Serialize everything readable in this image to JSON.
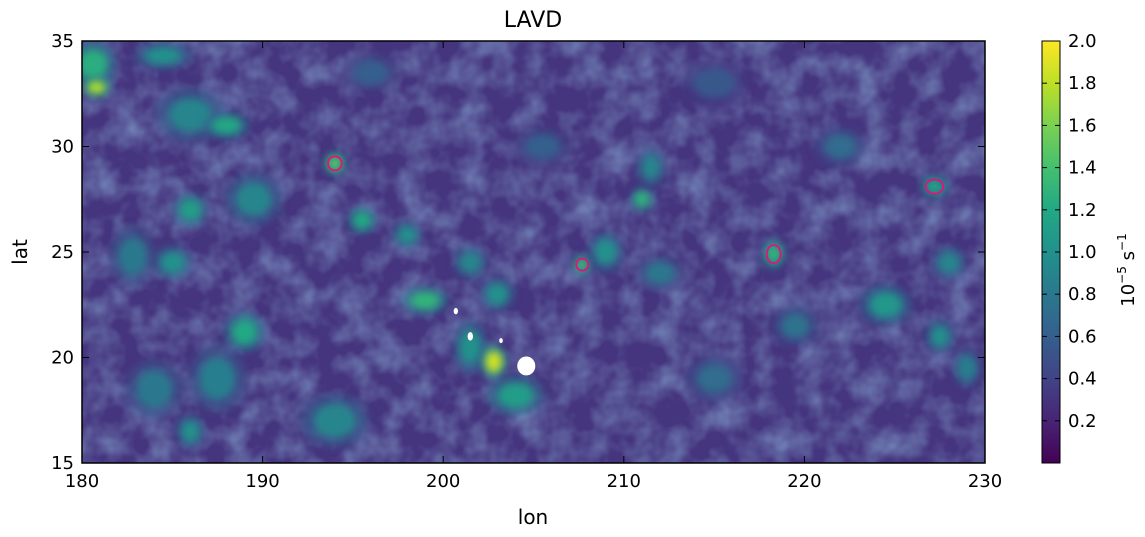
{
  "chart_data": {
    "type": "heatmap",
    "title": "LAVD",
    "xlabel": "lon",
    "ylabel": "lat",
    "xlim": [
      180,
      230
    ],
    "ylim": [
      15,
      35
    ],
    "xticks": [
      180,
      190,
      200,
      210,
      220,
      230
    ],
    "yticks": [
      15,
      20,
      25,
      30,
      35
    ],
    "colormap": "viridis",
    "colorbar": {
      "label_base": "10",
      "label_exp": "−5",
      "label_unit": "s",
      "label_unit_exp": "−1",
      "range": [
        0,
        2.0
      ],
      "ticks": [
        "0.2",
        "0.4",
        "0.6",
        "0.8",
        "1.0",
        "1.2",
        "1.4",
        "1.6",
        "1.8",
        "2.0"
      ],
      "tick_values": [
        0.2,
        0.4,
        0.6,
        0.8,
        1.0,
        1.2,
        1.4,
        1.6,
        1.8,
        2.0
      ]
    },
    "background_level": 0.3,
    "features": [
      {
        "lon": 180.6,
        "lat": 33.9,
        "rx": 0.8,
        "ry": 0.7,
        "value": 1.25
      },
      {
        "lon": 180.8,
        "lat": 32.8,
        "rx": 0.5,
        "ry": 0.3,
        "value": 1.75
      },
      {
        "lon": 184.5,
        "lat": 34.3,
        "rx": 1.0,
        "ry": 0.4,
        "value": 1.0
      },
      {
        "lon": 186.0,
        "lat": 31.5,
        "rx": 1.2,
        "ry": 0.8,
        "value": 0.9
      },
      {
        "lon": 188.0,
        "lat": 31.0,
        "rx": 0.8,
        "ry": 0.4,
        "value": 1.2
      },
      {
        "lon": 194.0,
        "lat": 29.2,
        "rx": 0.4,
        "ry": 0.35,
        "value": 1.45,
        "contour": true
      },
      {
        "lon": 186.0,
        "lat": 27.0,
        "rx": 0.6,
        "ry": 0.5,
        "value": 1.1
      },
      {
        "lon": 189.5,
        "lat": 27.5,
        "rx": 1.0,
        "ry": 0.8,
        "value": 0.9
      },
      {
        "lon": 185.0,
        "lat": 24.5,
        "rx": 0.7,
        "ry": 0.5,
        "value": 1.0
      },
      {
        "lon": 182.8,
        "lat": 24.8,
        "rx": 0.8,
        "ry": 0.9,
        "value": 0.8
      },
      {
        "lon": 195.5,
        "lat": 26.5,
        "rx": 0.5,
        "ry": 0.4,
        "value": 1.2
      },
      {
        "lon": 198.0,
        "lat": 25.8,
        "rx": 0.5,
        "ry": 0.4,
        "value": 1.0
      },
      {
        "lon": 199.0,
        "lat": 22.7,
        "rx": 0.8,
        "ry": 0.4,
        "value": 1.3
      },
      {
        "lon": 201.5,
        "lat": 24.5,
        "rx": 0.6,
        "ry": 0.5,
        "value": 0.9
      },
      {
        "lon": 203.0,
        "lat": 23.0,
        "rx": 0.6,
        "ry": 0.5,
        "value": 1.0
      },
      {
        "lon": 201.5,
        "lat": 20.5,
        "rx": 0.6,
        "ry": 0.8,
        "value": 1.0
      },
      {
        "lon": 202.8,
        "lat": 19.8,
        "rx": 0.45,
        "ry": 0.5,
        "value": 1.85
      },
      {
        "lon": 204.0,
        "lat": 18.2,
        "rx": 1.0,
        "ry": 0.6,
        "value": 1.1
      },
      {
        "lon": 189.0,
        "lat": 21.2,
        "rx": 0.7,
        "ry": 0.6,
        "value": 1.2
      },
      {
        "lon": 187.5,
        "lat": 19.0,
        "rx": 1.0,
        "ry": 1.0,
        "value": 0.85
      },
      {
        "lon": 184.0,
        "lat": 18.5,
        "rx": 1.0,
        "ry": 0.9,
        "value": 0.8
      },
      {
        "lon": 194.0,
        "lat": 17.0,
        "rx": 1.2,
        "ry": 0.8,
        "value": 0.9
      },
      {
        "lon": 186.0,
        "lat": 16.5,
        "rx": 0.5,
        "ry": 0.5,
        "value": 1.0
      },
      {
        "lon": 207.7,
        "lat": 24.4,
        "rx": 0.35,
        "ry": 0.3,
        "value": 1.35,
        "contour": true
      },
      {
        "lon": 209.0,
        "lat": 25.0,
        "rx": 0.6,
        "ry": 0.6,
        "value": 1.0
      },
      {
        "lon": 211.0,
        "lat": 27.5,
        "rx": 0.4,
        "ry": 0.35,
        "value": 1.3
      },
      {
        "lon": 211.5,
        "lat": 29.0,
        "rx": 0.5,
        "ry": 0.6,
        "value": 0.9
      },
      {
        "lon": 212.0,
        "lat": 24.0,
        "rx": 0.8,
        "ry": 0.5,
        "value": 0.8
      },
      {
        "lon": 218.3,
        "lat": 24.9,
        "rx": 0.4,
        "ry": 0.45,
        "value": 1.3,
        "contour": true
      },
      {
        "lon": 227.2,
        "lat": 28.1,
        "rx": 0.5,
        "ry": 0.35,
        "value": 1.15,
        "contour": true
      },
      {
        "lon": 224.5,
        "lat": 22.5,
        "rx": 0.9,
        "ry": 0.6,
        "value": 1.05
      },
      {
        "lon": 227.5,
        "lat": 21.0,
        "rx": 0.5,
        "ry": 0.5,
        "value": 1.0
      },
      {
        "lon": 228.0,
        "lat": 24.5,
        "rx": 0.6,
        "ry": 0.5,
        "value": 0.9
      },
      {
        "lon": 215.0,
        "lat": 19.0,
        "rx": 1.0,
        "ry": 0.7,
        "value": 0.7
      },
      {
        "lon": 219.5,
        "lat": 21.5,
        "rx": 0.8,
        "ry": 0.6,
        "value": 0.75
      },
      {
        "lon": 222.0,
        "lat": 30.0,
        "rx": 0.9,
        "ry": 0.6,
        "value": 0.7
      },
      {
        "lon": 229.0,
        "lat": 19.5,
        "rx": 0.5,
        "ry": 0.6,
        "value": 0.85
      },
      {
        "lon": 205.5,
        "lat": 30.0,
        "rx": 1.0,
        "ry": 0.6,
        "value": 0.6
      },
      {
        "lon": 215.0,
        "lat": 33.0,
        "rx": 1.2,
        "ry": 0.7,
        "value": 0.55
      },
      {
        "lon": 196.0,
        "lat": 33.5,
        "rx": 1.0,
        "ry": 0.6,
        "value": 0.6
      }
    ],
    "nan_patches": [
      {
        "lon": 204.6,
        "lat": 19.6,
        "rx": 0.5,
        "ry": 0.45
      },
      {
        "lon": 201.5,
        "lat": 21.0,
        "rx": 0.15,
        "ry": 0.2
      },
      {
        "lon": 200.7,
        "lat": 22.2,
        "rx": 0.12,
        "ry": 0.15
      },
      {
        "lon": 203.2,
        "lat": 20.8,
        "rx": 0.1,
        "ry": 0.12
      }
    ]
  }
}
